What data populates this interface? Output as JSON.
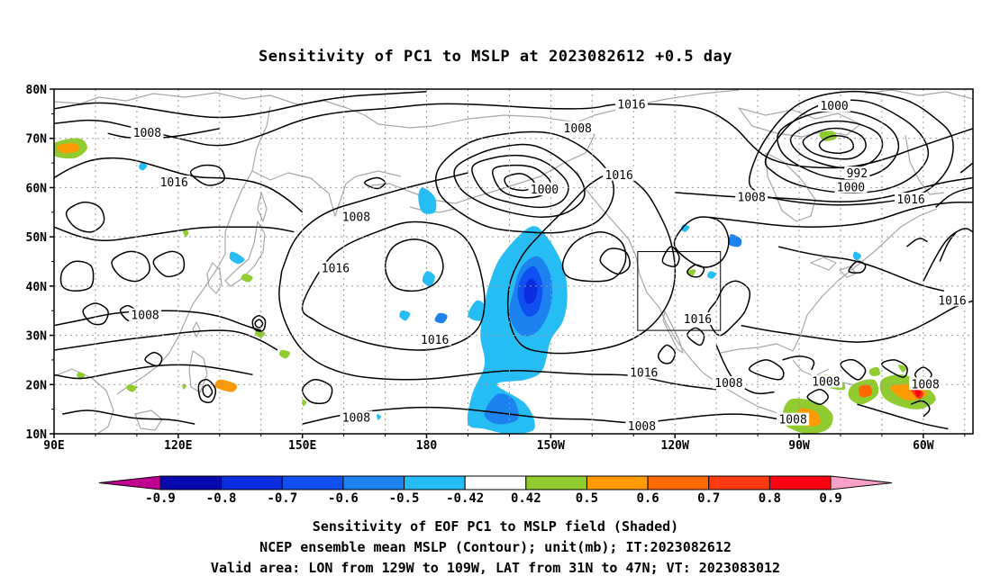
{
  "title": "Sensitivity of PC1 to MSLP at 2023082612 +0.5 day",
  "map": {
    "lat_ticks": [
      "80N",
      "70N",
      "60N",
      "50N",
      "40N",
      "30N",
      "20N",
      "10N"
    ],
    "lon_ticks": [
      "90E",
      "120E",
      "150E",
      "180",
      "150W",
      "120W",
      "90W",
      "60W"
    ],
    "lon_range": [
      90,
      312
    ],
    "lat_range": [
      10,
      80
    ],
    "grid": "dotted",
    "valid_area": {
      "lon": [
        231,
        251
      ],
      "lat": [
        31,
        47
      ]
    },
    "contour_labels": [
      {
        "text": "1016",
        "lon": 229.5,
        "lat": 76.8
      },
      {
        "text": "1008",
        "lon": 216.5,
        "lat": 72.0
      },
      {
        "text": "1000",
        "lon": 278.5,
        "lat": 76.5
      },
      {
        "text": "1008",
        "lon": 112.5,
        "lat": 71.0
      },
      {
        "text": "1016",
        "lon": 119.0,
        "lat": 61.0
      },
      {
        "text": "1000",
        "lon": 208.5,
        "lat": 59.5
      },
      {
        "text": "1016",
        "lon": 226.5,
        "lat": 62.5
      },
      {
        "text": "992",
        "lon": 284.0,
        "lat": 62.8
      },
      {
        "text": "1000",
        "lon": 282.5,
        "lat": 60.0
      },
      {
        "text": "1008",
        "lon": 163.0,
        "lat": 54.0
      },
      {
        "text": "1008",
        "lon": 258.5,
        "lat": 58.0
      },
      {
        "text": "1016",
        "lon": 297.0,
        "lat": 57.5
      },
      {
        "text": "1016",
        "lon": 158.0,
        "lat": 43.5
      },
      {
        "text": "1008",
        "lon": 112.0,
        "lat": 34.0
      },
      {
        "text": "1016",
        "lon": 182.0,
        "lat": 29.0
      },
      {
        "text": "1016",
        "lon": 245.5,
        "lat": 33.2
      },
      {
        "text": "1016",
        "lon": 307.0,
        "lat": 37.0
      },
      {
        "text": "1016",
        "lon": 232.5,
        "lat": 22.3
      },
      {
        "text": "1008",
        "lon": 253.0,
        "lat": 20.2
      },
      {
        "text": "1008",
        "lon": 276.5,
        "lat": 20.5
      },
      {
        "text": "1008",
        "lon": 300.5,
        "lat": 20.0
      },
      {
        "text": "1008",
        "lon": 163.0,
        "lat": 13.2
      },
      {
        "text": "1008",
        "lon": 232.0,
        "lat": 11.5
      },
      {
        "text": "1008",
        "lon": 268.5,
        "lat": 12.8
      }
    ]
  },
  "colorbar": {
    "labels": [
      "-0.9",
      "-0.8",
      "-0.7",
      "-0.6",
      "-0.5",
      "-0.42",
      "0.42",
      "0.5",
      "0.6",
      "0.7",
      "0.8",
      "0.9"
    ],
    "colors": [
      "#c00090",
      "#0808b0",
      "#0a2de0",
      "#1050f0",
      "#1c82f0",
      "#26bcf4",
      "#ffffff",
      "#90cc30",
      "#ff9a00",
      "#ff6a00",
      "#ff3a10",
      "#ff0010",
      "#f8a0c8"
    ]
  },
  "captions": [
    "Sensitivity of EOF PC1 to MSLP field (Shaded)",
    "NCEP ensemble mean MSLP (Contour); unit(mb); IT:2023082612",
    "Valid area: LON from 129W to 109W, LAT from 31N to 47N; VT: 2023083012"
  ]
}
